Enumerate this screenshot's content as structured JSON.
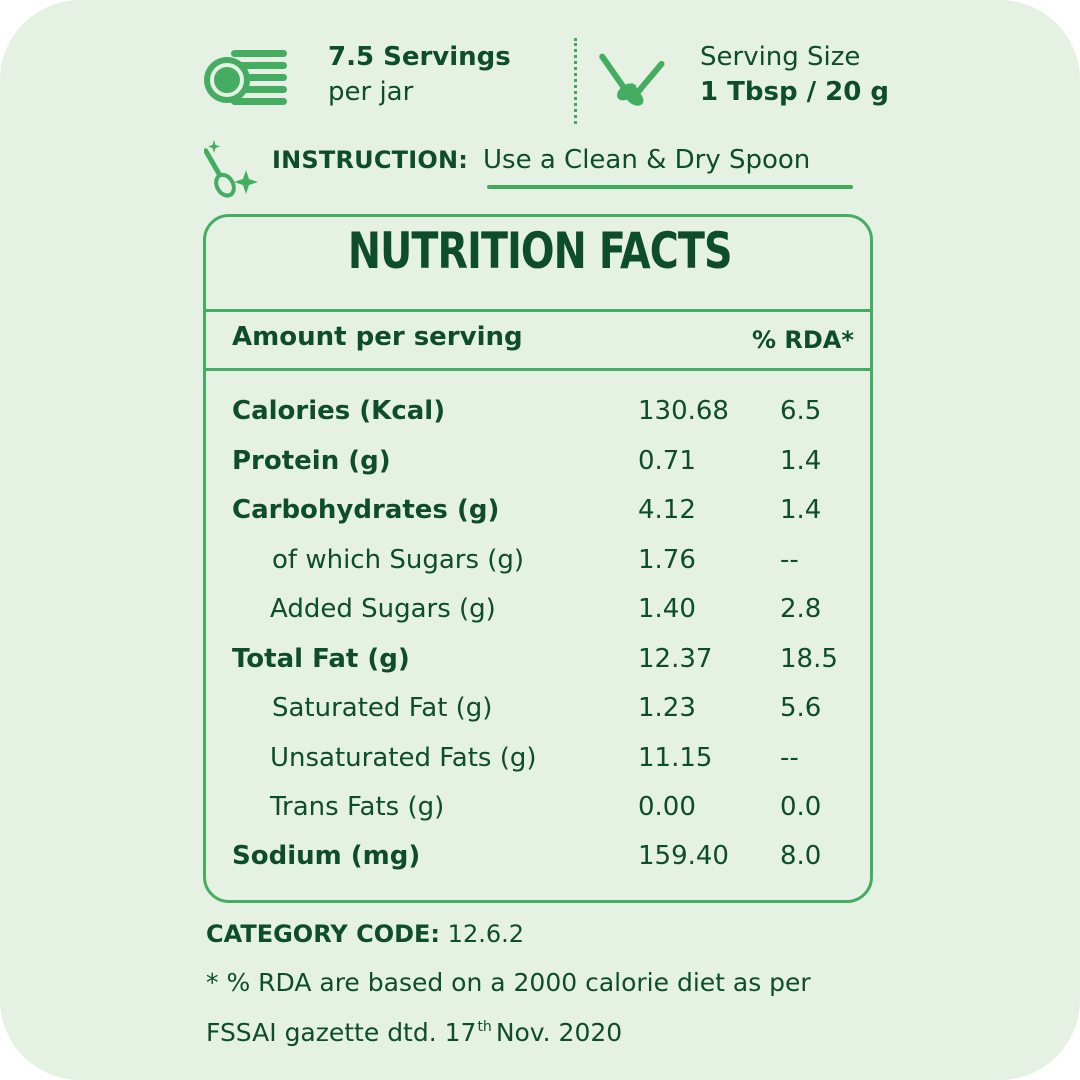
{
  "colors": {
    "background": "#e4f1e3",
    "accent": "#45ad62",
    "text": "#0e4d2c"
  },
  "servings": {
    "count": "7.5 Servings",
    "unit": "per jar",
    "icon": "plate-stack-icon"
  },
  "serving_size": {
    "label": "Serving Size",
    "value": "1 Tbsp / 20 g",
    "icon": "spoons-icon"
  },
  "instruction": {
    "label": "INSTRUCTION:",
    "value": "Use a Clean & Dry Spoon",
    "icon": "sparkle-spoon-icon"
  },
  "nutrition": {
    "title": "NUTRITION FACTS",
    "amount_header": "Amount per serving",
    "rda_header": "% RDA*",
    "rows": [
      {
        "label": "Calories (Kcal)",
        "value": "130.68",
        "rda": "6.5"
      },
      {
        "label": "Protein (g)",
        "value": "0.71",
        "rda": "1.4"
      },
      {
        "label": "Carbohydrates (g)",
        "value": "4.12",
        "rda": "1.4"
      },
      {
        "label": "of which Sugars (g)",
        "value": "1.76",
        "rda": "--"
      },
      {
        "label": "Added Sugars (g)",
        "value": "1.40",
        "rda": "2.8"
      },
      {
        "label": "Total Fat (g)",
        "value": "12.37",
        "rda": "18.5"
      },
      {
        "label": "Saturated Fat (g)",
        "value": "1.23",
        "rda": "5.6"
      },
      {
        "label": "Unsaturated Fats (g)",
        "value": "11.15",
        "rda": "--"
      },
      {
        "label": "Trans Fats (g)",
        "value": "0.00",
        "rda": "0.0"
      },
      {
        "label": "Sodium (mg)",
        "value": "159.40",
        "rda": "8.0"
      }
    ]
  },
  "footer": {
    "category_label": "CATEGORY CODE:",
    "category_value": "12.6.2",
    "note_line1": "* % RDA are based on a 2000 calorie diet as per",
    "note_line2_a": "FSSAI gazette dtd. 17",
    "note_sup": "th",
    "note_line2_b": "Nov. 2020"
  }
}
